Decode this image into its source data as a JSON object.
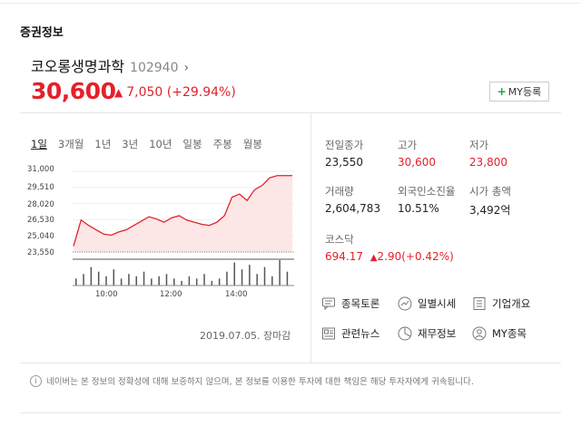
{
  "section": {
    "title": "증권정보"
  },
  "stock": {
    "name": "코오롱생명과학",
    "code": "102940",
    "price": "30,600",
    "change": "7,050",
    "change_pct": "(+29.94%)"
  },
  "my_button": {
    "label": "MY등록"
  },
  "tabs": [
    "1일",
    "3개월",
    "1년",
    "3년",
    "10년",
    "일봉",
    "주봉",
    "월봉"
  ],
  "chart_data": {
    "type": "area",
    "x": [
      "09:00",
      "09:05",
      "09:10",
      "09:20",
      "09:30",
      "09:45",
      "10:00",
      "10:15",
      "10:30",
      "10:45",
      "11:00",
      "11:15",
      "11:30",
      "11:45",
      "12:00",
      "12:15",
      "12:30",
      "12:45",
      "13:00",
      "13:15",
      "13:30",
      "13:45",
      "14:00",
      "14:05",
      "14:15",
      "14:30",
      "14:45",
      "15:00",
      "15:15",
      "15:30"
    ],
    "values": [
      24100,
      26500,
      26000,
      25600,
      25200,
      25100,
      25400,
      25600,
      26000,
      26400,
      26800,
      26600,
      26300,
      26700,
      26900,
      26500,
      26300,
      26100,
      26000,
      26300,
      26900,
      28600,
      28900,
      28300,
      29300,
      29700,
      30400,
      30600,
      30600,
      30600
    ],
    "y_ticks": [
      "31,000",
      "29,510",
      "28,020",
      "26,530",
      "25,040",
      "23,550"
    ],
    "ylim": [
      23550,
      31000
    ],
    "x_ticks": [
      "10:00",
      "12:00",
      "14:00"
    ],
    "volume": [
      3,
      5,
      8,
      6,
      4,
      7,
      3,
      5,
      4,
      6,
      3,
      4,
      5,
      3,
      2,
      4,
      3,
      5,
      2,
      3,
      6,
      10,
      7,
      9,
      5,
      8,
      4,
      11,
      6,
      3
    ]
  },
  "date_text": "2019.07.05. 장마감",
  "stats": {
    "prev_close": {
      "label": "전일종가",
      "value": "23,550"
    },
    "high": {
      "label": "고가",
      "value": "30,600"
    },
    "low": {
      "label": "저가",
      "value": "23,800"
    },
    "volume": {
      "label": "거래량",
      "value": "2,604,783"
    },
    "foreign": {
      "label": "외국인소진율",
      "value": "10.51%"
    },
    "mcap": {
      "label": "시가 총액",
      "value": "3,492억"
    }
  },
  "index": {
    "name": "코스닥",
    "value": "694.17",
    "change": "2.90",
    "change_pct": "(+0.42%)"
  },
  "links": [
    {
      "label": "종목토론",
      "icon": "discussion-icon"
    },
    {
      "label": "일별시세",
      "icon": "trend-icon"
    },
    {
      "label": "기업개요",
      "icon": "list-icon"
    },
    {
      "label": "관련뉴스",
      "icon": "news-icon"
    },
    {
      "label": "재무정보",
      "icon": "pie-icon"
    },
    {
      "label": "MY종목",
      "icon": "user-icon"
    }
  ],
  "notice": {
    "info_glyph": "i",
    "text": "네이버는 본 정보의 정확성에 대해 보증하지 않으며, 본 정보를 이용한 투자에 대한 책임은 해당 투자자에게 귀속됩니다."
  },
  "colors": {
    "up": "#e3212b",
    "chart_fill": "#fde6e6"
  }
}
